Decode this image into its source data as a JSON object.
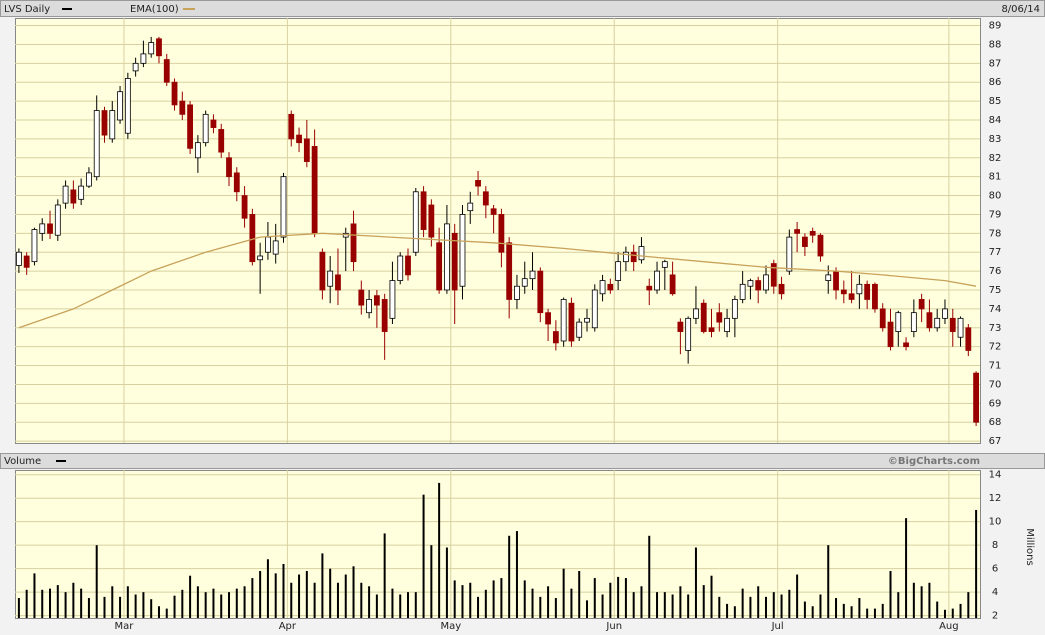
{
  "chart_data": [
    {
      "type": "candlestick",
      "title": "LVS Daily",
      "date": "8/06/14",
      "up_color": "#ffffff",
      "down_color": "#990000",
      "grid": true,
      "ylim": [
        66.9,
        89.4
      ],
      "yticks": [
        67,
        68,
        69,
        70,
        71,
        72,
        73,
        74,
        75,
        76,
        77,
        78,
        79,
        80,
        81,
        82,
        83,
        84,
        85,
        86,
        87,
        88,
        89
      ],
      "open": [
        76.3,
        76.8,
        76.5,
        78.0,
        78.5,
        77.9,
        79.6,
        80.3,
        79.8,
        80.5,
        81.0,
        84.5,
        83.0,
        84.0,
        83.3,
        86.6,
        87.0,
        87.5,
        88.3,
        87.2,
        86.0,
        85.0,
        84.8,
        82.0,
        82.8,
        84.0,
        83.5,
        82.0,
        81.2,
        80.0,
        79.0,
        76.6,
        77.0,
        76.9,
        77.8,
        84.3,
        83.2,
        83.0,
        82.6,
        77.0,
        75.2,
        75.8,
        77.8,
        78.5,
        75.0,
        73.8,
        74.7,
        74.5,
        73.5,
        75.5,
        76.8,
        77.0,
        80.2,
        79.5,
        77.5,
        75.0,
        78.0,
        75.2,
        79.2,
        80.8,
        80.2,
        79.3,
        79.0,
        77.5,
        74.5,
        75.2,
        75.6,
        76.0,
        73.8,
        72.8,
        72.3,
        74.3,
        72.5,
        73.3,
        73.0,
        74.8,
        75.3,
        75.5,
        76.5,
        77.0,
        76.6,
        75.2,
        75.0,
        76.2,
        75.8,
        73.3,
        71.8,
        73.5,
        74.3,
        73.0,
        73.8,
        72.8,
        73.5,
        74.5,
        75.2,
        75.5,
        75.0,
        76.4,
        75.3,
        76.0,
        78.2,
        77.8,
        78.1,
        77.9,
        75.5,
        76.0,
        75.0,
        74.8,
        74.8,
        75.3,
        75.3,
        74.0,
        73.3,
        72.8,
        72.2,
        72.8,
        74.5,
        73.8,
        73.0,
        73.5,
        73.5,
        72.5,
        73.0,
        70.6
      ],
      "high": [
        77.2,
        77.0,
        78.3,
        78.8,
        79.2,
        79.8,
        80.8,
        80.8,
        80.9,
        81.5,
        85.3,
        84.7,
        85.0,
        85.8,
        86.5,
        87.3,
        88.2,
        88.4,
        88.4,
        87.5,
        86.2,
        85.5,
        85.0,
        83.2,
        84.5,
        84.3,
        83.8,
        82.3,
        81.5,
        80.5,
        79.3,
        77.5,
        78.6,
        78.5,
        81.2,
        84.5,
        83.6,
        84.0,
        83.5,
        77.2,
        76.8,
        77.2,
        78.3,
        79.2,
        75.5,
        75.0,
        75.0,
        74.8,
        76.5,
        77.0,
        77.2,
        80.4,
        80.5,
        79.8,
        78.3,
        79.5,
        78.5,
        79.5,
        80.2,
        81.3,
        80.5,
        79.5,
        79.3,
        77.8,
        75.8,
        76.5,
        77.0,
        76.2,
        74.0,
        73.4,
        74.6,
        74.6,
        73.5,
        74.0,
        75.3,
        75.8,
        75.6,
        77.0,
        77.3,
        77.4,
        77.8,
        75.6,
        76.5,
        76.6,
        76.5,
        73.5,
        73.6,
        75.2,
        74.5,
        74.0,
        74.3,
        74.0,
        74.7,
        76.0,
        75.6,
        75.7,
        76.3,
        76.6,
        75.7,
        78.2,
        78.6,
        78.0,
        78.3,
        78.0,
        76.3,
        76.2,
        75.5,
        76.0,
        75.8,
        75.5,
        75.4,
        74.3,
        74.0,
        73.9,
        72.5,
        74.5,
        74.8,
        74.5,
        74.0,
        74.5,
        74.0,
        73.6,
        73.2,
        70.7
      ],
      "low": [
        75.9,
        75.8,
        76.3,
        77.6,
        77.7,
        77.6,
        79.3,
        79.3,
        79.5,
        80.4,
        80.8,
        82.8,
        82.8,
        83.8,
        83.0,
        86.3,
        86.8,
        87.3,
        87.0,
        85.8,
        84.5,
        84.0,
        82.2,
        81.2,
        82.6,
        83.3,
        82.0,
        80.5,
        79.7,
        78.3,
        76.3,
        74.8,
        76.6,
        76.4,
        77.5,
        82.6,
        82.3,
        81.5,
        77.8,
        74.5,
        74.3,
        74.2,
        76.0,
        76.0,
        73.7,
        73.5,
        73.0,
        71.3,
        73.2,
        75.3,
        75.5,
        76.8,
        77.8,
        77.3,
        74.8,
        74.8,
        73.2,
        74.5,
        78.5,
        80.0,
        78.8,
        78.0,
        76.2,
        73.5,
        74.0,
        74.8,
        75.0,
        73.3,
        72.3,
        71.8,
        72.0,
        72.0,
        72.3,
        72.8,
        72.8,
        74.4,
        74.8,
        75.0,
        76.0,
        76.0,
        76.4,
        74.2,
        74.8,
        75.0,
        74.7,
        71.6,
        71.1,
        73.2,
        72.7,
        72.5,
        72.8,
        72.5,
        72.5,
        74.3,
        74.5,
        74.3,
        74.8,
        74.8,
        74.5,
        75.8,
        77.0,
        76.8,
        77.5,
        76.5,
        74.8,
        74.5,
        74.3,
        74.3,
        74.0,
        74.0,
        73.8,
        72.8,
        71.8,
        72.0,
        71.8,
        72.5,
        73.3,
        72.8,
        72.8,
        73.2,
        72.0,
        72.0,
        71.5,
        67.8
      ],
      "close": [
        77.0,
        76.2,
        78.2,
        78.5,
        78.0,
        79.5,
        80.5,
        79.6,
        80.5,
        81.2,
        84.5,
        83.2,
        84.5,
        85.5,
        86.2,
        87.0,
        87.5,
        88.1,
        87.4,
        86.0,
        84.8,
        84.3,
        82.5,
        82.8,
        84.3,
        83.6,
        82.3,
        81.0,
        80.2,
        78.8,
        76.5,
        76.8,
        77.8,
        77.6,
        81.0,
        83.0,
        82.8,
        81.8,
        78.0,
        75.0,
        76.0,
        75.0,
        78.0,
        76.5,
        74.2,
        74.5,
        74.2,
        72.8,
        75.5,
        76.8,
        75.8,
        80.2,
        78.2,
        77.8,
        75.0,
        78.5,
        75.0,
        79.0,
        79.6,
        80.5,
        79.5,
        79.0,
        77.0,
        74.5,
        75.2,
        75.6,
        76.0,
        73.8,
        73.2,
        72.2,
        74.5,
        72.3,
        73.3,
        73.5,
        75.0,
        75.5,
        75.0,
        76.5,
        77.0,
        76.5,
        77.3,
        75.0,
        76.0,
        76.5,
        74.8,
        72.8,
        73.5,
        74.0,
        72.8,
        72.8,
        73.3,
        73.5,
        74.5,
        75.3,
        75.5,
        75.0,
        75.8,
        75.2,
        74.8,
        77.8,
        78.0,
        77.3,
        77.9,
        76.8,
        75.8,
        75.0,
        74.8,
        74.5,
        75.3,
        74.5,
        74.0,
        73.0,
        72.0,
        73.8,
        72.0,
        73.8,
        74.0,
        73.0,
        73.5,
        74.0,
        72.8,
        73.5,
        71.8,
        68.0
      ],
      "ema": {
        "name": "EMA(100)",
        "color": "#c8a25a",
        "x": [
          0,
          7,
          12,
          17,
          24,
          31,
          39,
          52,
          61,
          70,
          80,
          88,
          96,
          105,
          111,
          119,
          123
        ],
        "values": [
          73.0,
          74.0,
          75.0,
          76.0,
          77.0,
          77.8,
          78.0,
          77.7,
          77.5,
          77.2,
          76.8,
          76.5,
          76.2,
          76.0,
          75.8,
          75.5,
          75.2
        ]
      }
    },
    {
      "type": "bar",
      "title": "Volume",
      "credit": "©BigCharts.com",
      "y_label": "Millions",
      "color": "#000000",
      "ylim": [
        1.8,
        14.4
      ],
      "yticks": [
        2,
        4,
        6,
        8,
        10,
        12,
        14
      ],
      "categories": [
        null,
        null,
        null,
        null,
        null,
        null,
        null,
        null,
        null,
        null,
        null,
        null,
        null,
        null,
        "Mar",
        null,
        null,
        null,
        null,
        null,
        null,
        null,
        null,
        null,
        null,
        null,
        null,
        null,
        null,
        null,
        null,
        null,
        null,
        null,
        null,
        "Apr",
        null,
        null,
        null,
        null,
        null,
        null,
        null,
        null,
        null,
        null,
        null,
        null,
        null,
        null,
        null,
        null,
        null,
        null,
        null,
        null,
        "May",
        null,
        null,
        null,
        null,
        null,
        null,
        null,
        null,
        null,
        null,
        null,
        null,
        null,
        null,
        null,
        null,
        null,
        null,
        null,
        null,
        "Jun",
        null,
        null,
        null,
        null,
        null,
        null,
        null,
        null,
        null,
        null,
        null,
        null,
        null,
        null,
        null,
        null,
        null,
        null,
        null,
        null,
        "Jul",
        null,
        null,
        null,
        null,
        null,
        null,
        null,
        null,
        null,
        null,
        null,
        null,
        null,
        null,
        null,
        null,
        null,
        null,
        null,
        null,
        null,
        "Aug",
        null,
        null,
        null
      ],
      "values": [
        3.5,
        4.2,
        5.6,
        4.2,
        4.3,
        4.6,
        4.0,
        4.8,
        4.3,
        3.5,
        8.0,
        3.6,
        4.5,
        3.6,
        4.5,
        3.8,
        4.0,
        3.4,
        2.8,
        2.6,
        3.7,
        4.2,
        5.4,
        4.5,
        4.0,
        4.3,
        3.8,
        4.0,
        4.3,
        4.5,
        5.2,
        5.8,
        6.8,
        5.6,
        6.4,
        4.8,
        5.5,
        5.8,
        4.8,
        7.3,
        6.0,
        4.8,
        5.5,
        6.2,
        4.8,
        4.5,
        3.8,
        9.0,
        4.3,
        3.8,
        4.0,
        4.0,
        12.3,
        8.0,
        13.3,
        7.8,
        5.0,
        4.6,
        4.8,
        3.6,
        4.2,
        5.0,
        5.2,
        8.8,
        9.2,
        5.0,
        4.3,
        3.6,
        4.5,
        3.5,
        6.0,
        4.3,
        5.8,
        3.3,
        5.2,
        3.8,
        4.8,
        5.3,
        5.2,
        4.0,
        4.5,
        8.8,
        4.0,
        4.0,
        3.8,
        4.5,
        3.8,
        7.8,
        4.6,
        5.4,
        3.6,
        3.0,
        2.8,
        4.3,
        3.6,
        4.5,
        3.6,
        4.0,
        3.8,
        4.2,
        5.5,
        3.2,
        2.8,
        3.8,
        8.0,
        3.5,
        3.0,
        2.8,
        3.5,
        2.6,
        2.6,
        3.0,
        5.8,
        4.0,
        10.3,
        4.8,
        4.5,
        4.8,
        3.2,
        2.5,
        2.6,
        3.0,
        4.0,
        11.0
      ]
    }
  ]
}
